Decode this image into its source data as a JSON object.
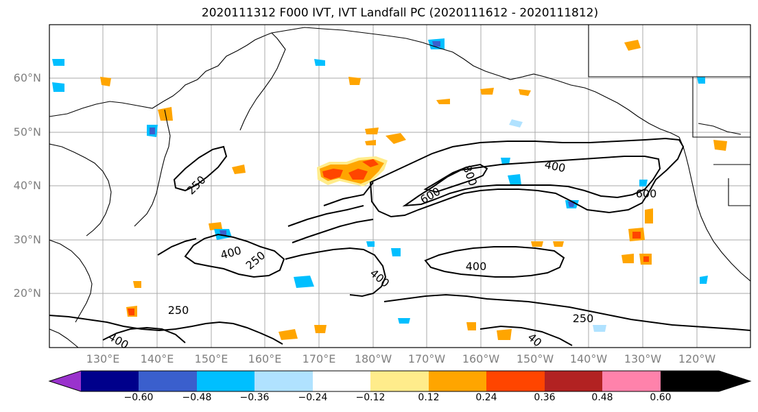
{
  "title": "2020111312 F000 IVT, IVT Landfall PC (2020111612 - 2020111812)",
  "lat_labels": [
    "60°N",
    "50°N",
    "40°N",
    "30°N",
    "20°N"
  ],
  "lon_labels": [
    "130°E",
    "140°E",
    "150°E",
    "160°E",
    "170°E",
    "180°W",
    "170°W",
    "160°W",
    "150°W",
    "140°W",
    "130°W",
    "120°W"
  ],
  "colorbar": {
    "tick_labels": [
      "−0.60",
      "−0.48",
      "−0.36",
      "−0.24",
      "−0.12",
      "0.12",
      "0.24",
      "0.36",
      "0.48",
      "0.60"
    ],
    "colors": [
      "#9a32cd",
      "#00008b",
      "#3a5fcd",
      "#00bfff",
      "#b0e2ff",
      "#ffffff",
      "#ffec8b",
      "#ffa500",
      "#ff4500",
      "#b22222",
      "#ff82ab"
    ]
  },
  "contour_labels": [
    "400",
    "800",
    "600",
    "250",
    "400",
    "250",
    "400",
    "250",
    "400",
    "600",
    "400",
    "250",
    "40"
  ],
  "styles": {
    "grid_color": "#aaaaaa",
    "coast_color": "#000000",
    "contour_color": "#000000"
  }
}
